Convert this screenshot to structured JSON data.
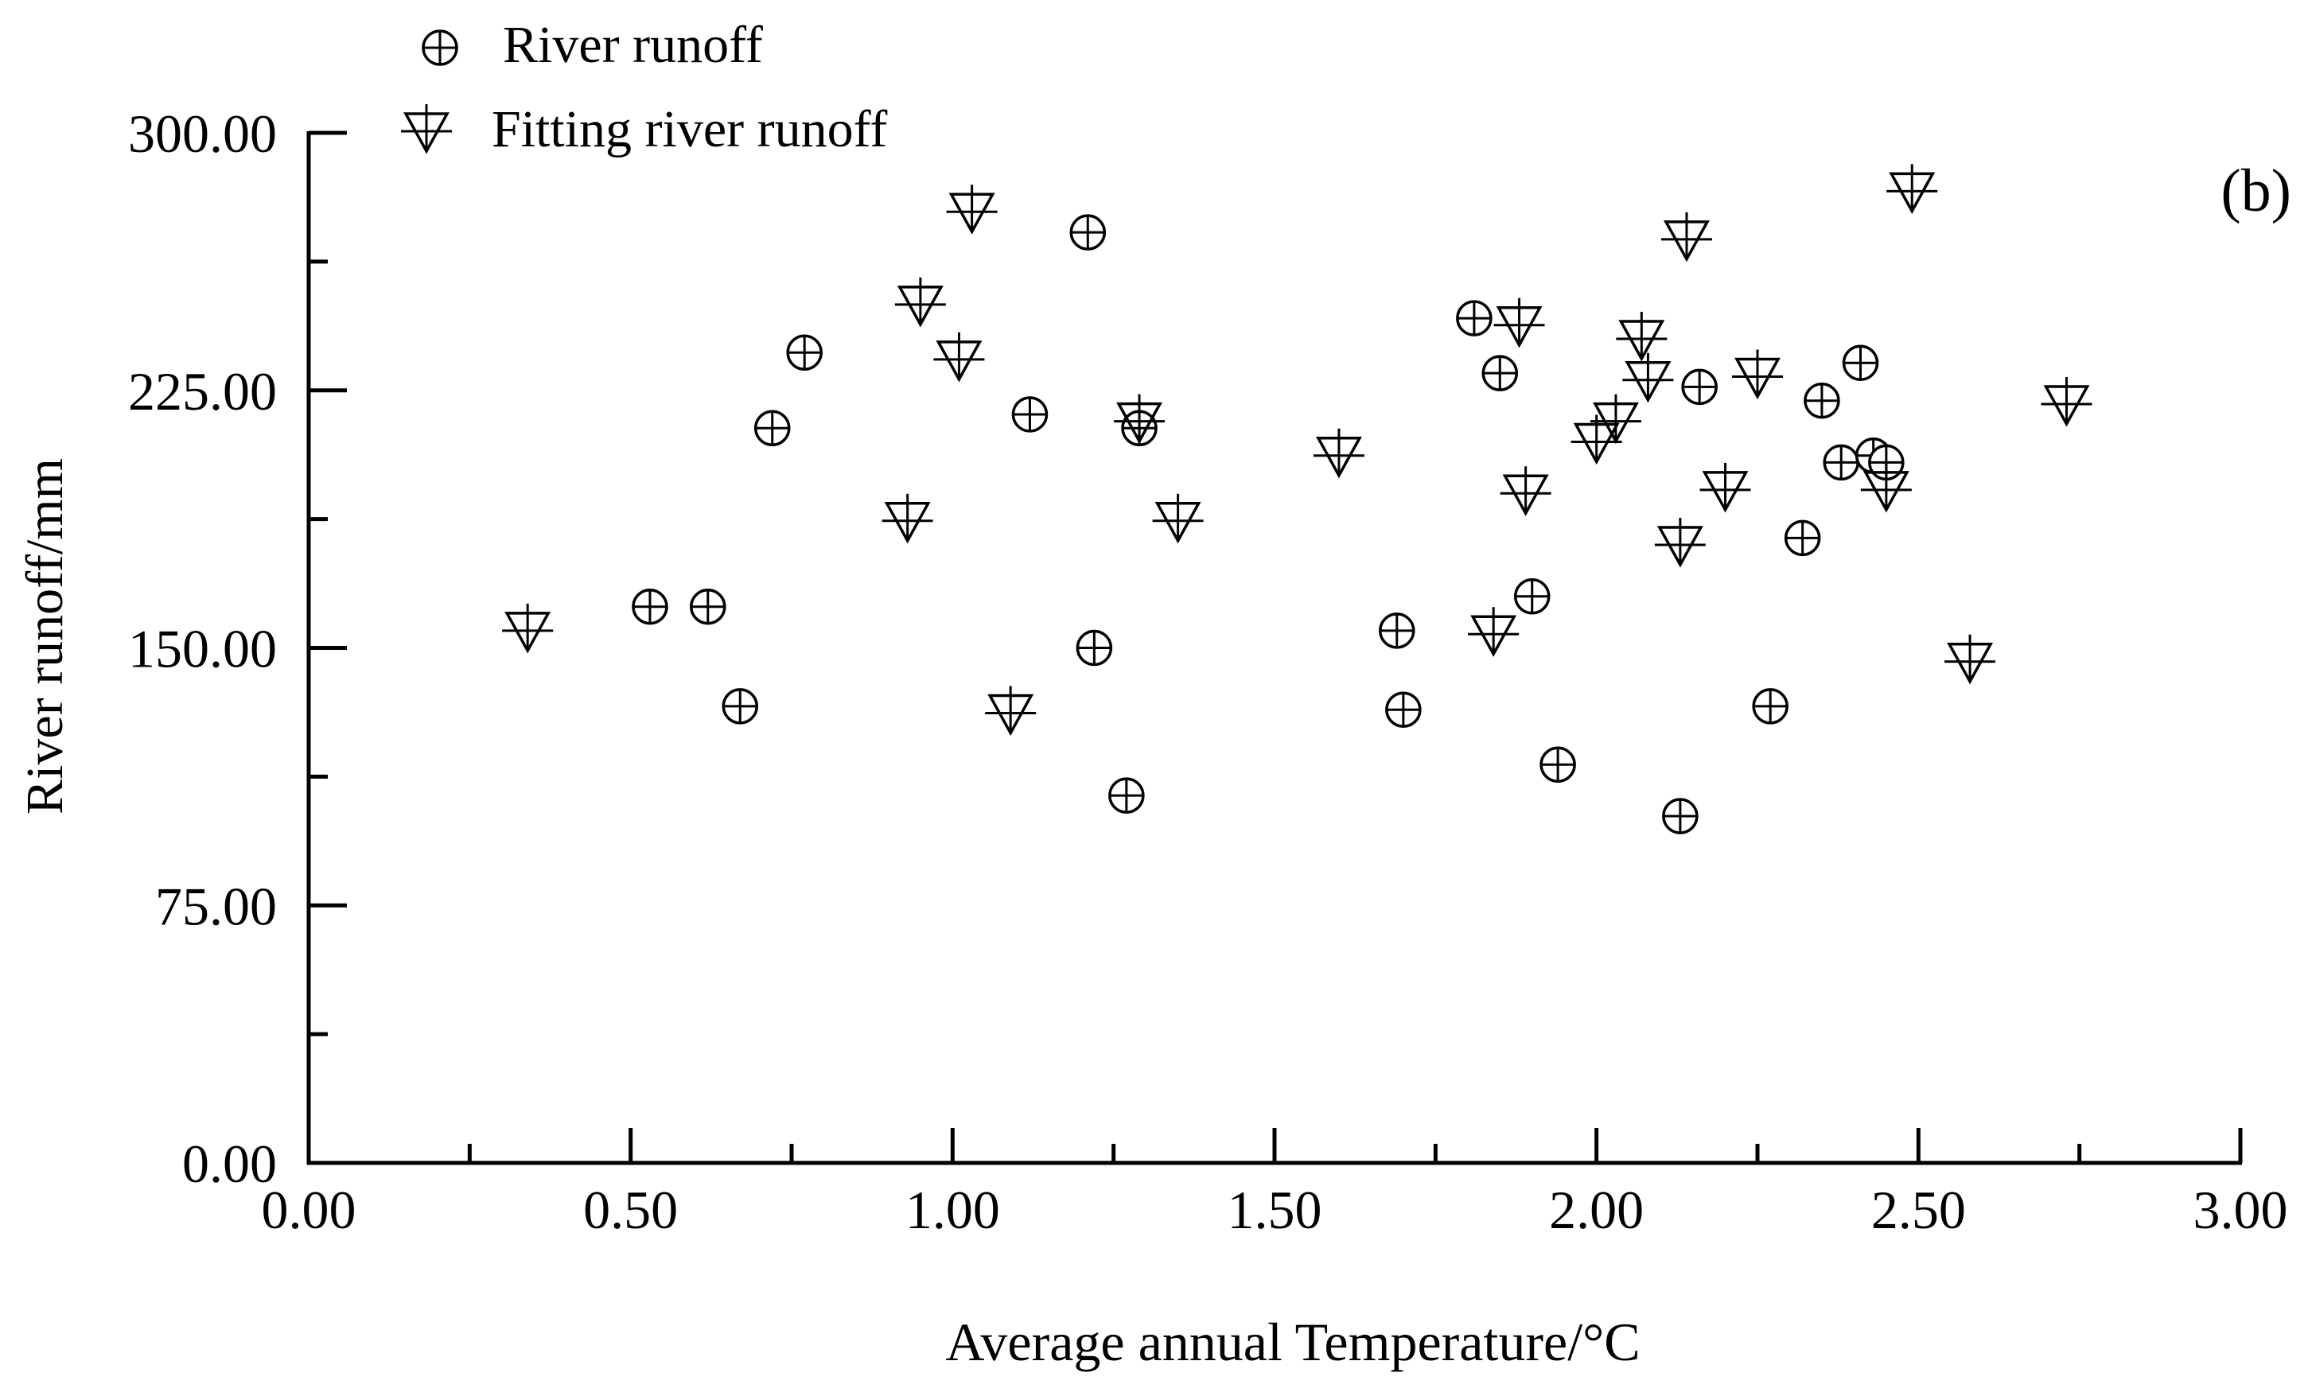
{
  "chart_data": {
    "type": "scatter",
    "panel_label": "(b)",
    "xlabel": "Average annual Temperature/°C",
    "ylabel": "River runoff/mm",
    "xlim": [
      0,
      3
    ],
    "ylim": [
      0,
      300
    ],
    "x_ticks": [
      0,
      0.5,
      1.0,
      1.5,
      2.0,
      2.5,
      3.0
    ],
    "x_tick_labels": [
      "0.00",
      "0.50",
      "1.00",
      "1.50",
      "2.00",
      "2.50",
      "3.00"
    ],
    "y_ticks": [
      0,
      75,
      150,
      225,
      300
    ],
    "y_tick_labels": [
      "0.00",
      "75.00",
      "150.00",
      "225.00",
      "300.00"
    ],
    "legend_position": "top-left",
    "series": [
      {
        "name": "River runoff",
        "marker": "circle-plus",
        "points": [
          [
            0.53,
            162
          ],
          [
            0.62,
            162
          ],
          [
            0.67,
            133
          ],
          [
            0.72,
            214
          ],
          [
            0.77,
            236
          ],
          [
            1.12,
            218
          ],
          [
            1.21,
            271
          ],
          [
            1.22,
            150
          ],
          [
            1.27,
            107
          ],
          [
            1.29,
            214
          ],
          [
            1.69,
            155
          ],
          [
            1.7,
            132
          ],
          [
            1.81,
            246
          ],
          [
            1.85,
            230
          ],
          [
            1.9,
            165
          ],
          [
            1.94,
            116
          ],
          [
            2.13,
            101
          ],
          [
            2.16,
            226
          ],
          [
            2.27,
            133
          ],
          [
            2.32,
            182
          ],
          [
            2.35,
            222
          ],
          [
            2.38,
            204
          ],
          [
            2.41,
            233
          ],
          [
            2.43,
            206
          ],
          [
            2.45,
            204
          ]
        ]
      },
      {
        "name": "Fitting river runoff",
        "marker": "triangle-down-plus",
        "points": [
          [
            0.34,
            155
          ],
          [
            0.93,
            187
          ],
          [
            0.95,
            250
          ],
          [
            1.01,
            234
          ],
          [
            1.03,
            277
          ],
          [
            1.09,
            131
          ],
          [
            1.29,
            216
          ],
          [
            1.35,
            187
          ],
          [
            1.6,
            206
          ],
          [
            1.84,
            154
          ],
          [
            1.88,
            244
          ],
          [
            1.89,
            195
          ],
          [
            2.0,
            210
          ],
          [
            2.03,
            216
          ],
          [
            2.07,
            240
          ],
          [
            2.08,
            228
          ],
          [
            2.13,
            180
          ],
          [
            2.14,
            269
          ],
          [
            2.2,
            196
          ],
          [
            2.25,
            229
          ],
          [
            2.45,
            196
          ],
          [
            2.49,
            283
          ],
          [
            2.58,
            146
          ],
          [
            2.73,
            221
          ]
        ]
      }
    ]
  }
}
